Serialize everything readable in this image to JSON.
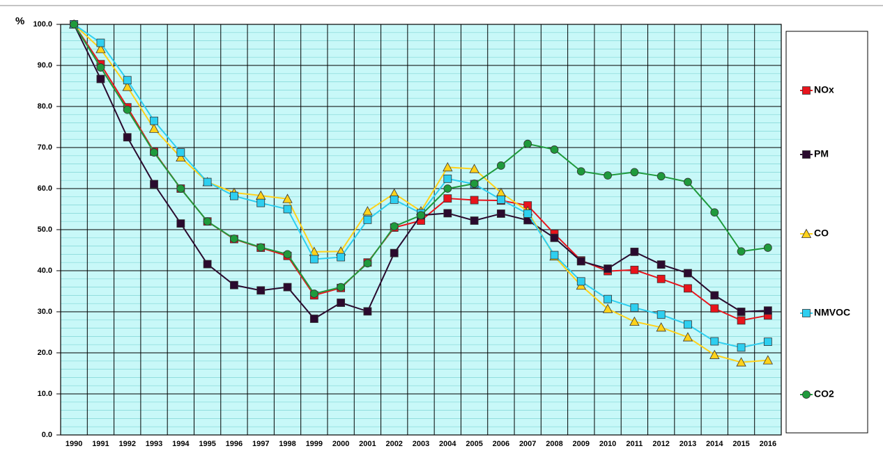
{
  "chart_data": {
    "type": "line",
    "y_unit": "%",
    "categories": [
      "1990",
      "1991",
      "1992",
      "1993",
      "1994",
      "1995",
      "1996",
      "1997",
      "1998",
      "1999",
      "2000",
      "2001",
      "2002",
      "2003",
      "2004",
      "2005",
      "2006",
      "2007",
      "2008",
      "2009",
      "2010",
      "2011",
      "2012",
      "2013",
      "2014",
      "2015",
      "2016"
    ],
    "series": [
      {
        "name": "NOx",
        "color": "#e8141c",
        "marker": "square",
        "values": [
          100,
          90.3,
          79.8,
          69,
          60,
          52,
          47.7,
          45.6,
          43.6,
          34,
          35.8,
          42,
          50.5,
          52.2,
          57.6,
          57.2,
          57.1,
          55.9,
          49,
          42.5,
          39.9,
          40.2,
          38,
          35.7,
          30.8,
          27.9,
          29.1
        ]
      },
      {
        "name": "PM",
        "color": "#2a0a2e",
        "marker": "square",
        "values": [
          100,
          86.7,
          72.5,
          61.1,
          51.5,
          41.6,
          36.5,
          35.2,
          36,
          28.3,
          32.2,
          30.1,
          44.3,
          53.5,
          54,
          52.2,
          53.9,
          52.3,
          48,
          42.3,
          40.5,
          44.6,
          41.5,
          39.4,
          34,
          30,
          30.3
        ]
      },
      {
        "name": "CO",
        "color": "#ffd21a",
        "marker": "triangle",
        "values": [
          100,
          94,
          84.8,
          74.6,
          67.6,
          61.6,
          59,
          58.3,
          57.5,
          44.6,
          44.7,
          54.5,
          58.8,
          54.5,
          65.2,
          64.8,
          59,
          54.5,
          43.5,
          36.4,
          30.7,
          27.6,
          26.2,
          23.8,
          19.5,
          17.7,
          18.2
        ]
      },
      {
        "name": "NMVOC",
        "color": "#2ecff0",
        "marker": "square",
        "values": [
          100,
          95.5,
          86.4,
          76.5,
          68.8,
          61.6,
          58.2,
          56.5,
          55,
          42.8,
          43.3,
          52.4,
          57.3,
          54,
          62.4,
          61.1,
          57.3,
          53.9,
          43.8,
          37.4,
          33.1,
          31,
          29.3,
          26.9,
          22.8,
          21.3,
          22.7
        ]
      },
      {
        "name": "CO2",
        "color": "#1f9a3c",
        "marker": "circle",
        "values": [
          100,
          89.5,
          79.2,
          68.8,
          60,
          52,
          47.8,
          45.7,
          44,
          34.4,
          36,
          41.8,
          50.8,
          53.5,
          60,
          61.2,
          65.6,
          70.9,
          69.5,
          64.2,
          63.2,
          64,
          63,
          61.6,
          54.2,
          44.7,
          45.6
        ]
      }
    ],
    "ylim": [
      0,
      100
    ],
    "yticks": [
      {
        "value": 0,
        "label": "0.0"
      },
      {
        "value": 10,
        "label": "10.0"
      },
      {
        "value": 20,
        "label": "20.0"
      },
      {
        "value": 30,
        "label": "30.0"
      },
      {
        "value": 40,
        "label": "40.0"
      },
      {
        "value": 50,
        "label": "50.0"
      },
      {
        "value": 60,
        "label": "60.0"
      },
      {
        "value": 70,
        "label": "70.0"
      },
      {
        "value": 80,
        "label": "80.0"
      },
      {
        "value": 90,
        "label": "90.0"
      },
      {
        "value": 100,
        "label": "100.0"
      }
    ],
    "grid": true,
    "plot_background": "#c8f8f8",
    "legend_position": "right"
  }
}
